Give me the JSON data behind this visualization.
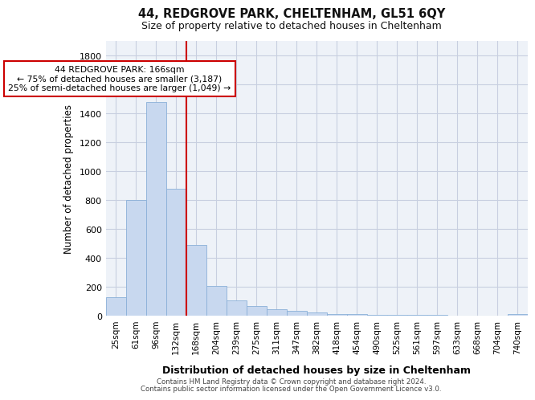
{
  "title1": "44, REDGROVE PARK, CHELTENHAM, GL51 6QY",
  "title2": "Size of property relative to detached houses in Cheltenham",
  "xlabel": "Distribution of detached houses by size in Cheltenham",
  "ylabel": "Number of detached properties",
  "footnote1": "Contains HM Land Registry data © Crown copyright and database right 2024.",
  "footnote2": "Contains public sector information licensed under the Open Government Licence v3.0.",
  "categories": [
    "25sqm",
    "61sqm",
    "96sqm",
    "132sqm",
    "168sqm",
    "204sqm",
    "239sqm",
    "275sqm",
    "311sqm",
    "347sqm",
    "382sqm",
    "418sqm",
    "454sqm",
    "490sqm",
    "525sqm",
    "561sqm",
    "597sqm",
    "633sqm",
    "668sqm",
    "704sqm",
    "740sqm"
  ],
  "values": [
    125,
    800,
    1475,
    875,
    490,
    205,
    105,
    65,
    45,
    32,
    22,
    10,
    10,
    8,
    5,
    4,
    3,
    2,
    2,
    2,
    10
  ],
  "bar_color": "#c8d8ef",
  "bar_edge_color": "#8ab0d8",
  "vline_color": "#cc0000",
  "annotation_text": "44 REDGROVE PARK: 166sqm\n← 75% of detached houses are smaller (3,187)\n25% of semi-detached houses are larger (1,049) →",
  "annotation_box_edge": "#cc0000",
  "ylim": [
    0,
    1900
  ],
  "yticks": [
    0,
    200,
    400,
    600,
    800,
    1000,
    1200,
    1400,
    1600,
    1800
  ],
  "grid_color": "#c8cfe0",
  "axes_background": "#eef2f8",
  "fig_background": "#ffffff"
}
